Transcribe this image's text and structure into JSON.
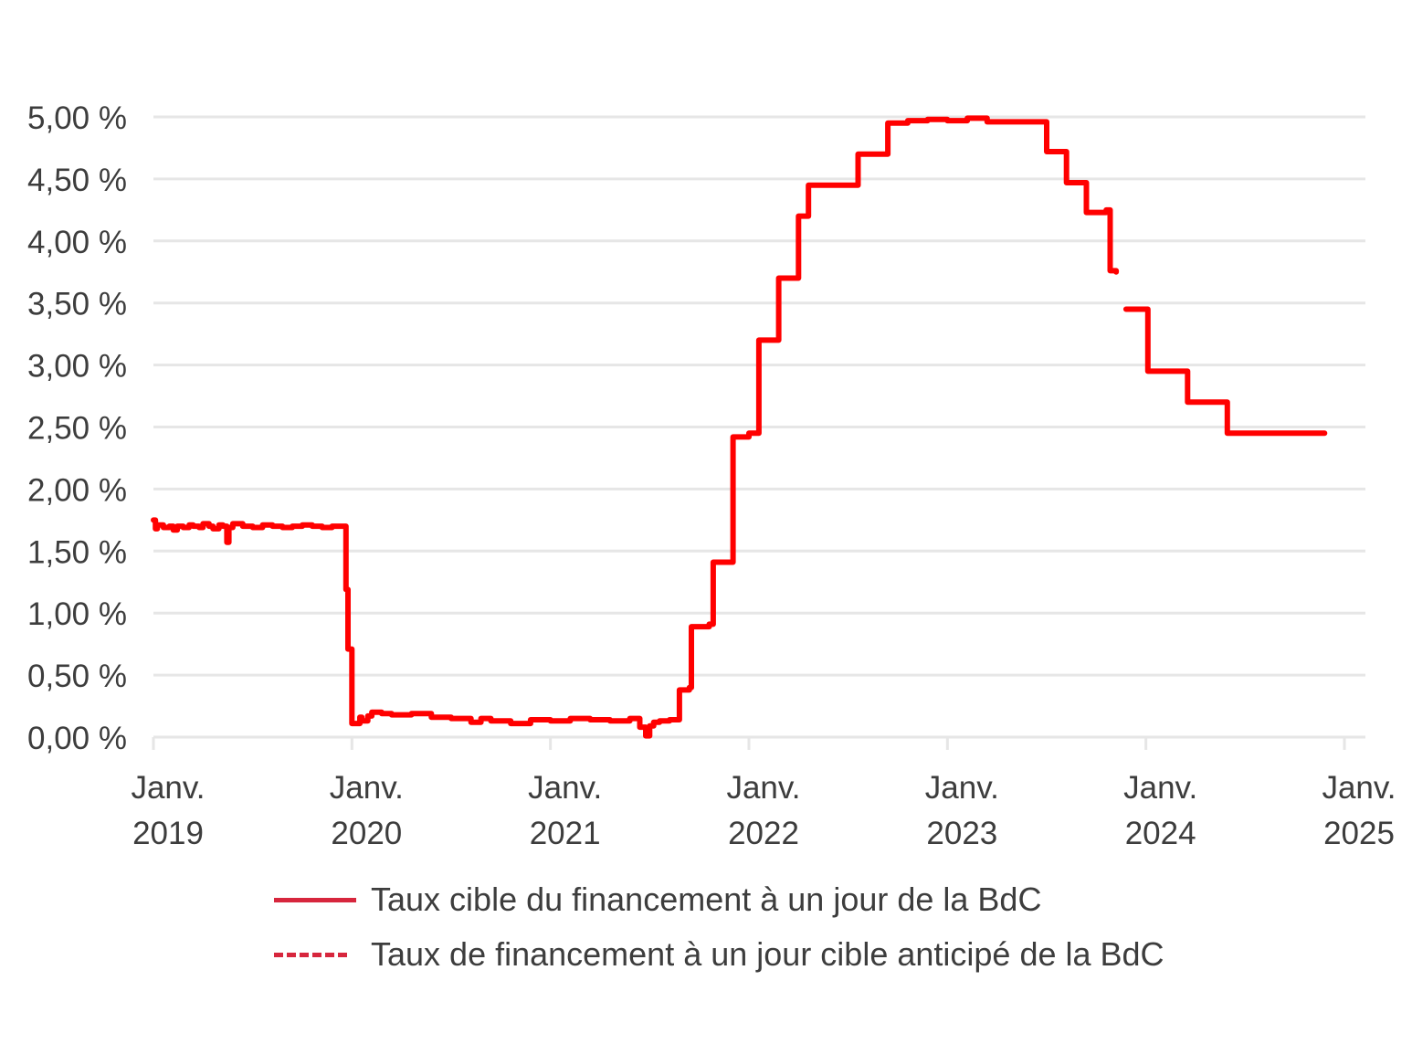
{
  "chart_data": {
    "type": "line",
    "title": "",
    "xlabel": "",
    "ylabel": "",
    "xlim": [
      2019.0,
      2025.0
    ],
    "ylim": [
      0,
      5
    ],
    "y_ticks": [
      0,
      0.5,
      1,
      1.5,
      2,
      2.5,
      3,
      3.5,
      4,
      4.5,
      5
    ],
    "y_tick_labels": [
      "0,00 %",
      "0,50 %",
      "1,00 %",
      "1,50 %",
      "2,00 %",
      "2,50 %",
      "3,00 %",
      "3,50 %",
      "4,00 %",
      "4,50 %",
      "5,00 %"
    ],
    "x_ticks": [
      {
        "line1": "Janv.",
        "line2": "2019"
      },
      {
        "line1": "Janv.",
        "line2": "2020"
      },
      {
        "line1": "Janv.",
        "line2": "2021"
      },
      {
        "line1": "Janv.",
        "line2": "2022"
      },
      {
        "line1": "Janv.",
        "line2": "2023"
      },
      {
        "line1": "Janv.",
        "line2": "2024"
      },
      {
        "line1": "Janv.",
        "line2": "2025"
      }
    ],
    "grid": true,
    "legend_position": "bottom",
    "series": [
      {
        "name": "Taux cible du financement à un jour de la BdC",
        "style": "solid",
        "color": "#ff0000",
        "legend_color": "#d7263d",
        "x": [
          2019.0,
          2019.01,
          2019.02,
          2019.05,
          2019.08,
          2019.1,
          2019.12,
          2019.15,
          2019.18,
          2019.2,
          2019.23,
          2019.25,
          2019.28,
          2019.3,
          2019.33,
          2019.35,
          2019.37,
          2019.38,
          2019.4,
          2019.45,
          2019.5,
          2019.55,
          2019.6,
          2019.65,
          2019.7,
          2019.75,
          2019.8,
          2019.85,
          2019.9,
          2019.95,
          2019.97,
          2019.98,
          2020.0,
          2020.04,
          2020.05,
          2020.08,
          2020.1,
          2020.15,
          2020.2,
          2020.3,
          2020.4,
          2020.5,
          2020.6,
          2020.65,
          2020.7,
          2020.8,
          2020.9,
          2021.0,
          2021.1,
          2021.2,
          2021.3,
          2021.4,
          2021.45,
          2021.48,
          2021.5,
          2021.52,
          2021.55,
          2021.6,
          2021.65,
          2021.7,
          2021.71,
          2021.8,
          2021.82,
          2021.9,
          2021.92,
          2022.0,
          2022.05,
          2022.06,
          2022.15,
          2022.25,
          2022.3,
          2022.4,
          2022.45,
          2022.55,
          2022.58,
          2022.7,
          2022.75,
          2022.8,
          2022.9,
          2023.0,
          2023.1,
          2023.2,
          2023.3,
          2023.4,
          2023.5,
          2023.55,
          2023.6,
          2023.62,
          2023.7,
          2023.75,
          2023.8,
          2023.82,
          2023.85
        ],
        "y": [
          1.75,
          1.68,
          1.71,
          1.69,
          1.7,
          1.67,
          1.7,
          1.69,
          1.71,
          1.7,
          1.69,
          1.72,
          1.7,
          1.68,
          1.71,
          1.7,
          1.57,
          1.69,
          1.72,
          1.7,
          1.69,
          1.71,
          1.7,
          1.69,
          1.7,
          1.71,
          1.7,
          1.69,
          1.7,
          1.7,
          1.19,
          0.71,
          0.11,
          0.16,
          0.13,
          0.17,
          0.2,
          0.19,
          0.18,
          0.19,
          0.16,
          0.15,
          0.12,
          0.15,
          0.13,
          0.11,
          0.14,
          0.13,
          0.15,
          0.14,
          0.13,
          0.15,
          0.08,
          0.01,
          0.09,
          0.12,
          0.13,
          0.14,
          0.38,
          0.4,
          0.89,
          0.91,
          1.41,
          1.41,
          2.42,
          2.45,
          3.2,
          3.2,
          3.7,
          4.2,
          4.45,
          4.45,
          4.45,
          4.7,
          4.7,
          4.95,
          4.95,
          4.97,
          4.98,
          4.97,
          4.99,
          4.96,
          4.96,
          4.96,
          4.72,
          4.72,
          4.47,
          4.47,
          4.23,
          4.23,
          4.25,
          3.76,
          3.75
        ]
      },
      {
        "name": "Taux de financement à un jour cible anticipé de la BdC",
        "style": "dashed",
        "color": "#ff0000",
        "legend_color": "#d7263d",
        "x": [
          2023.9,
          2024.0,
          2024.01,
          2024.2,
          2024.21,
          2024.4,
          2024.41,
          2024.9
        ],
        "y": [
          3.45,
          3.45,
          2.95,
          2.95,
          2.7,
          2.7,
          2.45,
          2.45
        ]
      }
    ]
  }
}
